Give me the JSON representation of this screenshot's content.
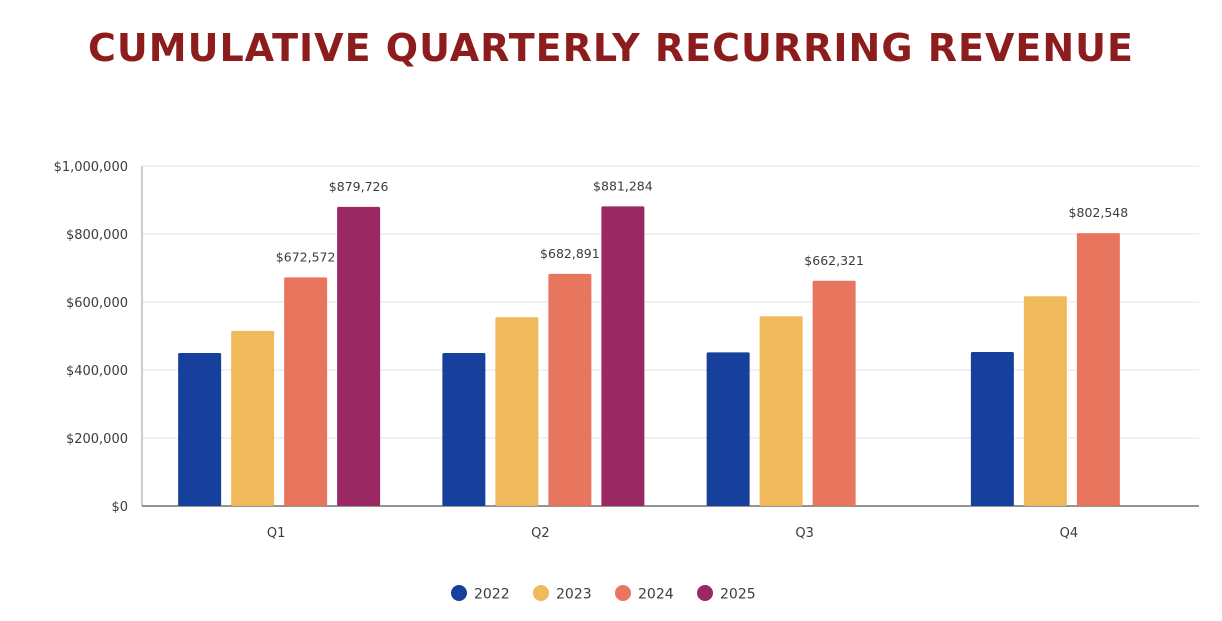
{
  "chart_data": {
    "type": "bar",
    "title": "CUMULATIVE QUARTERLY RECURRING REVENUE",
    "xlabel": "",
    "ylabel": "",
    "ylim": [
      0,
      1000000
    ],
    "yticks": [
      0,
      200000,
      400000,
      600000,
      800000,
      1000000
    ],
    "ytick_labels": [
      "$0",
      "$200,000",
      "$400,000",
      "$600,000",
      "$800,000",
      "$1,000,000"
    ],
    "grid": true,
    "legend_position": "bottom",
    "categories": [
      "Q1",
      "Q2",
      "Q3",
      "Q4"
    ],
    "series": [
      {
        "name": "2022",
        "color": "#173f9c",
        "values": [
          450000,
          450000,
          452000,
          453000
        ],
        "labels": [
          null,
          null,
          null,
          null
        ]
      },
      {
        "name": "2023",
        "color": "#efb95c",
        "values": [
          515000,
          555000,
          558000,
          617000
        ],
        "labels": [
          null,
          null,
          null,
          null
        ]
      },
      {
        "name": "2024",
        "color": "#e8765e",
        "values": [
          672572,
          682891,
          662321,
          802548
        ],
        "labels": [
          "$672,572",
          "$682,891",
          "$662,321",
          "$802,548"
        ]
      },
      {
        "name": "2025",
        "color": "#9a2863",
        "values": [
          879726,
          881284,
          null,
          null
        ],
        "labels": [
          "$879,726",
          "$881,284",
          null,
          null
        ]
      }
    ],
    "title_color": "#8d1c1c"
  }
}
